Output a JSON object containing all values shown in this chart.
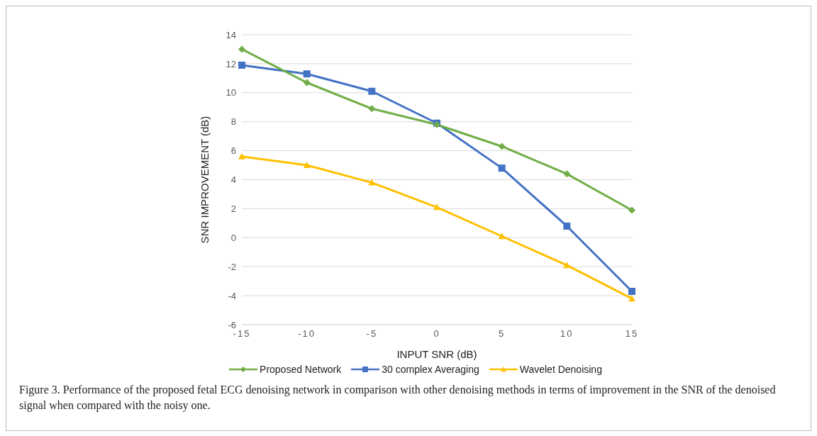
{
  "chart_data": {
    "type": "line",
    "xlabel": "INPUT SNR (dB)",
    "ylabel": "SNR IMPROVEMENT (dB)",
    "categories": [
      "-15",
      "-10",
      "-5",
      "0",
      "5",
      "10",
      "15"
    ],
    "series": [
      {
        "name": "Proposed Network",
        "color": "#70ad47",
        "marker": "diamond",
        "values": [
          13.0,
          10.7,
          8.9,
          7.8,
          6.3,
          4.4,
          1.9
        ]
      },
      {
        "name": "30 complex Averaging",
        "color": "#4472c4",
        "marker": "square",
        "values": [
          11.9,
          11.3,
          10.1,
          7.9,
          4.8,
          0.8,
          -3.7
        ]
      },
      {
        "name": "Wavelet Denoising",
        "color": "#ffc000",
        "marker": "triangle",
        "values": [
          5.6,
          5.0,
          3.8,
          2.1,
          0.1,
          -1.9,
          -4.2
        ]
      }
    ],
    "ylim": [
      -6,
      14
    ],
    "yticks": [
      -6,
      -4,
      -2,
      0,
      2,
      4,
      6,
      8,
      10,
      12,
      14
    ],
    "grid": "y",
    "legend": "bottom",
    "line_style": "solid",
    "annotations": [
      "Figure 3.  Performance of the proposed fetal ECG denoising network in comparison with other denoising methods in terms of improvement in the SNR of the denoised signal when compared with the noisy one."
    ]
  }
}
